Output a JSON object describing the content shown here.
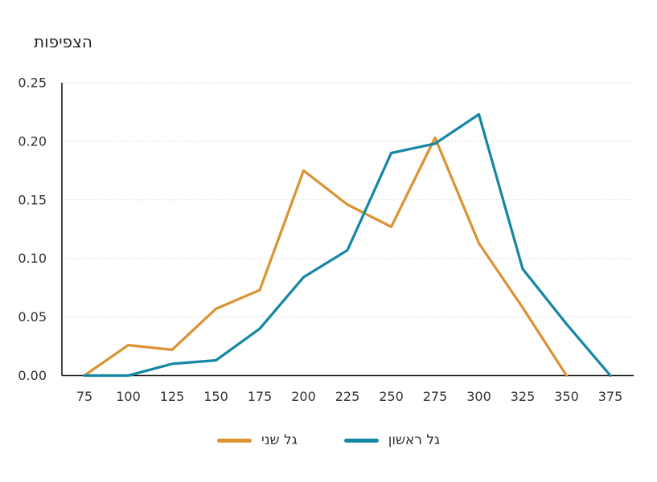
{
  "title": "הצפיפות",
  "colors": {
    "second_wave": "#DB9333",
    "first_wave": "#1687A3",
    "gridline": "#D4D4D4",
    "axis_line": "#1A1A1A",
    "tick_text": "#333333",
    "background": "#FFFFFF"
  },
  "legend": [
    {
      "id": "second-wave",
      "label": "גל שני",
      "color": "#DB9333"
    },
    {
      "id": "first-wave",
      "label": "גל ראשון",
      "color": "#1687A3"
    }
  ],
  "chart_data": {
    "type": "line",
    "title": "הצפיפות",
    "xlabel": "",
    "ylabel": "הצפיפות",
    "categories": [
      75,
      100,
      125,
      150,
      175,
      200,
      225,
      250,
      275,
      300,
      325,
      350,
      375
    ],
    "series": [
      {
        "id": "second-wave",
        "name": "גל שני",
        "color": "#DB9333",
        "values": [
          0,
          0.026,
          0.022,
          0.057,
          0.073,
          0.175,
          0.146,
          0.127,
          0.203,
          0.113,
          0.058,
          0,
          null
        ]
      },
      {
        "id": "first-wave",
        "name": "גל ראשון",
        "color": "#1687A3",
        "values": [
          0,
          0,
          0.01,
          0.013,
          0.04,
          0.084,
          0.107,
          0.19,
          0.198,
          0.223,
          0.091,
          0.044,
          0
        ]
      }
    ],
    "ylim": [
      0,
      0.25
    ],
    "yticks": [
      0,
      0.05,
      0.1,
      0.15,
      0.2,
      0.25
    ],
    "ytick_labels": [
      "0.00",
      "0.05",
      "0.10",
      "0.15",
      "0.20",
      "0.25"
    ],
    "grid": "horizontal-dotted",
    "legend_position": "bottom-center"
  }
}
